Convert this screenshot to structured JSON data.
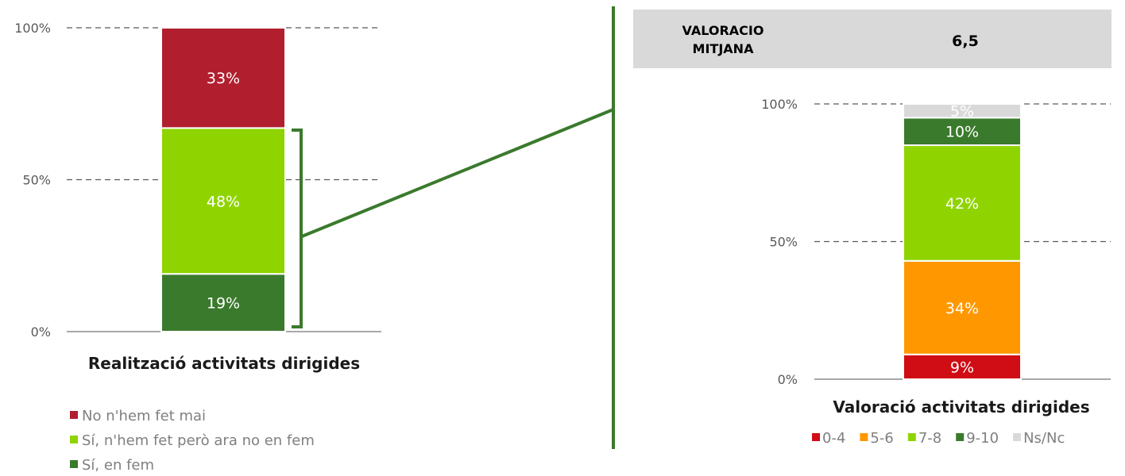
{
  "chart_data": [
    {
      "type": "bar",
      "stacked": true,
      "title": "Realització activitats dirigides",
      "categories": [
        "Realització activitats dirigides"
      ],
      "ylim": [
        0,
        100
      ],
      "yticks": [
        "0%",
        "50%",
        "100%"
      ],
      "grid": true,
      "legend_position": "bottom",
      "series": [
        {
          "name": "Sí, en fem",
          "value": 19,
          "label": "19%",
          "color": "#3a7a2c"
        },
        {
          "name": "Sí, n'hem fet però ara no en fem",
          "value": 48,
          "label": "48%",
          "color": "#8fd400"
        },
        {
          "name": "No n'hem fet mai",
          "value": 33,
          "label": "33%",
          "color": "#b11f2e"
        }
      ],
      "legend_order": [
        2,
        1,
        0
      ]
    },
    {
      "type": "bar",
      "stacked": true,
      "title": "Valoració activitats dirigides",
      "categories": [
        "Valoració activitats dirigides"
      ],
      "ylim": [
        0,
        100
      ],
      "yticks": [
        "0%",
        "50%",
        "100%"
      ],
      "grid": true,
      "legend_position": "bottom",
      "series": [
        {
          "name": "0-4",
          "value": 9,
          "label": "9%",
          "color": "#d00c14"
        },
        {
          "name": "5-6",
          "value": 34,
          "label": "34%",
          "color": "#ff9800"
        },
        {
          "name": "7-8",
          "value": 42,
          "label": "42%",
          "color": "#8fd400"
        },
        {
          "name": "9-10",
          "value": 10,
          "label": "10%",
          "color": "#3a7a2c"
        },
        {
          "name": "Ns/Nc",
          "value": 5,
          "label": "5%",
          "color": "#d9d9d9"
        }
      ],
      "legend_order": [
        0,
        1,
        2,
        3,
        4
      ]
    }
  ],
  "valoracio": {
    "label_line1": "VALORACIO",
    "label_line2": "MITJANA",
    "value": "6,5"
  },
  "colors": {
    "connector": "#3a7a2c",
    "grid": "#595959",
    "axis": "#8c8c8c",
    "box_bg": "#d9d9d9"
  }
}
